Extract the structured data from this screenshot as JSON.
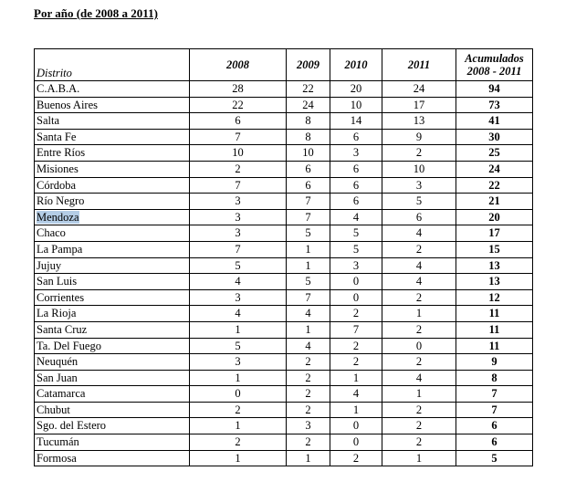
{
  "heading": "Por año (de 2008 a 2011)",
  "table": {
    "columns": {
      "district": "Distrito",
      "y2008": "2008",
      "y2009": "2009",
      "y2010": "2010",
      "y2011": "2011",
      "total_line1": "Acumulados",
      "total_line2": "2008 - 2011"
    },
    "rows": [
      {
        "district": "C.A.B.A.",
        "y2008": "28",
        "y2009": "22",
        "y2010": "20",
        "y2011": "24",
        "total": "94"
      },
      {
        "district": "Buenos Aires",
        "y2008": "22",
        "y2009": "24",
        "y2010": "10",
        "y2011": "17",
        "total": "73"
      },
      {
        "district": "Salta",
        "y2008": "6",
        "y2009": "8",
        "y2010": "14",
        "y2011": "13",
        "total": "41"
      },
      {
        "district": "Santa Fe",
        "y2008": "7",
        "y2009": "8",
        "y2010": "6",
        "y2011": "9",
        "total": "30"
      },
      {
        "district": "Entre Ríos",
        "y2008": "10",
        "y2009": "10",
        "y2010": "3",
        "y2011": "2",
        "total": "25"
      },
      {
        "district": "Misiones",
        "y2008": "2",
        "y2009": "6",
        "y2010": "6",
        "y2011": "10",
        "total": "24"
      },
      {
        "district": "Córdoba",
        "y2008": "7",
        "y2009": "6",
        "y2010": "6",
        "y2011": "3",
        "total": "22"
      },
      {
        "district": "Río Negro",
        "y2008": "3",
        "y2009": "7",
        "y2010": "6",
        "y2011": "5",
        "total": "21"
      },
      {
        "district": "Mendoza",
        "y2008": "3",
        "y2009": "7",
        "y2010": "4",
        "y2011": "6",
        "total": "20"
      },
      {
        "district": "Chaco",
        "y2008": "3",
        "y2009": "5",
        "y2010": "5",
        "y2011": "4",
        "total": "17"
      },
      {
        "district": "La Pampa",
        "y2008": "7",
        "y2009": "1",
        "y2010": "5",
        "y2011": "2",
        "total": "15"
      },
      {
        "district": "Jujuy",
        "y2008": "5",
        "y2009": "1",
        "y2010": "3",
        "y2011": "4",
        "total": "13"
      },
      {
        "district": "San Luis",
        "y2008": "4",
        "y2009": "5",
        "y2010": "0",
        "y2011": "4",
        "total": "13"
      },
      {
        "district": "Corrientes",
        "y2008": "3",
        "y2009": "7",
        "y2010": "0",
        "y2011": "2",
        "total": "12"
      },
      {
        "district": "La Rioja",
        "y2008": "4",
        "y2009": "4",
        "y2010": "2",
        "y2011": "1",
        "total": "11"
      },
      {
        "district": "Santa Cruz",
        "y2008": "1",
        "y2009": "1",
        "y2010": "7",
        "y2011": "2",
        "total": "11"
      },
      {
        "district": "Ta. Del Fuego",
        "y2008": "5",
        "y2009": "4",
        "y2010": "2",
        "y2011": "0",
        "total": "11"
      },
      {
        "district": "Neuquén",
        "y2008": "3",
        "y2009": "2",
        "y2010": "2",
        "y2011": "2",
        "total": "9"
      },
      {
        "district": "San Juan",
        "y2008": "1",
        "y2009": "2",
        "y2010": "1",
        "y2011": "4",
        "total": "8"
      },
      {
        "district": "Catamarca",
        "y2008": "0",
        "y2009": "2",
        "y2010": "4",
        "y2011": "1",
        "total": "7"
      },
      {
        "district": "Chubut",
        "y2008": "2",
        "y2009": "2",
        "y2010": "1",
        "y2011": "2",
        "total": "7"
      },
      {
        "district": "Sgo. del Estero",
        "y2008": "1",
        "y2009": "3",
        "y2010": "0",
        "y2011": "2",
        "total": "6"
      },
      {
        "district": "Tucumán",
        "y2008": "2",
        "y2009": "2",
        "y2010": "0",
        "y2011": "2",
        "total": "6"
      },
      {
        "district": "Formosa",
        "y2008": "1",
        "y2009": "1",
        "y2010": "2",
        "y2011": "1",
        "total": "5"
      }
    ],
    "selected_district": "Mendoza",
    "selection_color": "#b4cde6"
  }
}
